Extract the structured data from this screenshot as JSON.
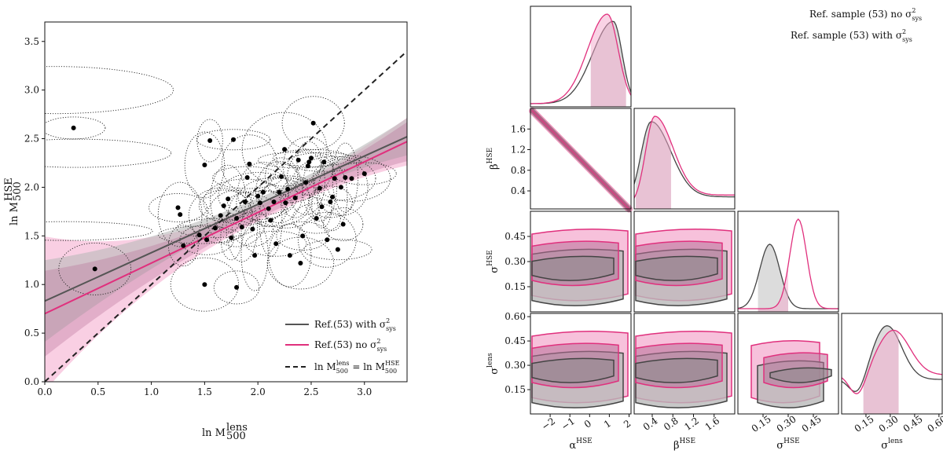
{
  "colors": {
    "pink": "#e0307d",
    "pink_band": "#f4a7cc",
    "grey": "#555555",
    "grey_band": "#b9b9b9",
    "dark": "#222222"
  },
  "chart_data": [
    {
      "type": "scatter",
      "xlabel_base": "ln M",
      "xlabel_sub": "500",
      "xlabel_sup": "lens",
      "ylabel_base": "ln M",
      "ylabel_sub": "500",
      "ylabel_sup": "HSE",
      "xlim": [
        0.0,
        3.4
      ],
      "ylim": [
        0.0,
        3.7
      ],
      "xticks": [
        "0.0",
        "0.5",
        "1.0",
        "1.5",
        "2.0",
        "2.5",
        "3.0"
      ],
      "yticks": [
        "0.0",
        "0.5",
        "1.0",
        "1.5",
        "2.0",
        "2.5",
        "3.0",
        "3.5"
      ],
      "points": [
        [
          0.27,
          2.61
        ],
        [
          0.47,
          1.16
        ],
        [
          1.25,
          1.79
        ],
        [
          1.27,
          1.72
        ],
        [
          1.3,
          1.4
        ],
        [
          1.45,
          1.51
        ],
        [
          1.5,
          1.0
        ],
        [
          1.52,
          1.46
        ],
        [
          1.5,
          2.23
        ],
        [
          1.55,
          2.48
        ],
        [
          1.6,
          1.58
        ],
        [
          1.65,
          1.71
        ],
        [
          1.68,
          1.81
        ],
        [
          1.72,
          1.88
        ],
        [
          1.75,
          1.48
        ],
        [
          1.77,
          2.49
        ],
        [
          1.8,
          1.68
        ],
        [
          1.8,
          0.97
        ],
        [
          1.85,
          1.59
        ],
        [
          1.88,
          1.85
        ],
        [
          1.9,
          2.1
        ],
        [
          1.92,
          2.24
        ],
        [
          1.95,
          1.57
        ],
        [
          1.97,
          1.3
        ],
        [
          2.0,
          1.91
        ],
        [
          2.02,
          1.84
        ],
        [
          2.05,
          1.95
        ],
        [
          2.1,
          1.78
        ],
        [
          2.12,
          1.66
        ],
        [
          2.15,
          1.85
        ],
        [
          2.17,
          1.42
        ],
        [
          2.2,
          1.95
        ],
        [
          2.22,
          2.11
        ],
        [
          2.25,
          2.39
        ],
        [
          2.26,
          1.84
        ],
        [
          2.28,
          1.98
        ],
        [
          2.3,
          1.3
        ],
        [
          2.35,
          1.89
        ],
        [
          2.38,
          2.28
        ],
        [
          2.4,
          1.22
        ],
        [
          2.42,
          1.5
        ],
        [
          2.45,
          2.05
        ],
        [
          2.48,
          2.26
        ],
        [
          2.5,
          2.3
        ],
        [
          2.52,
          2.66
        ],
        [
          2.55,
          1.68
        ],
        [
          2.58,
          1.99
        ],
        [
          2.6,
          1.8
        ],
        [
          2.62,
          2.26
        ],
        [
          2.65,
          1.46
        ],
        [
          2.68,
          1.85
        ],
        [
          2.7,
          1.9
        ],
        [
          2.72,
          2.09
        ],
        [
          2.75,
          1.36
        ],
        [
          2.78,
          2.0
        ],
        [
          2.8,
          1.62
        ],
        [
          2.82,
          2.1
        ],
        [
          2.88,
          2.09
        ],
        [
          3.0,
          2.14
        ],
        [
          2.47,
          2.22
        ]
      ],
      "lines": [
        {
          "name": "Ref.(53) with σ²sys",
          "color": "grey",
          "x": [
            0.0,
            3.4
          ],
          "y": [
            0.83,
            2.52
          ]
        },
        {
          "name": "Ref.(53) no σ²sys",
          "color": "pink",
          "x": [
            0.0,
            3.4
          ],
          "y": [
            0.7,
            2.47
          ]
        },
        {
          "name": "ln M500lens = ln M500HSE",
          "color": "dark",
          "dashed": true,
          "x": [
            0.0,
            3.4
          ],
          "y": [
            0.0,
            3.4
          ]
        }
      ],
      "legend": {
        "placement": "lower-right",
        "entries": [
          {
            "base": "Ref.(53) with σ",
            "sup": "2",
            "sub": "sys"
          },
          {
            "base": "Ref.(53) no σ",
            "sup": "2",
            "sub": "sys"
          },
          {
            "eq": "ln M",
            "sub1": "500",
            "sup1": "lens",
            "mid": " = ln M",
            "sub2": "500",
            "sup2": "HSE"
          }
        ]
      }
    },
    {
      "type": "corner",
      "legend": {
        "placement": "top-right",
        "entries": [
          {
            "text": "Ref. sample (53) no σ",
            "sup": "2",
            "sub": "sys",
            "color": "pink"
          },
          {
            "text": "Ref. sample (53) with σ",
            "sup": "2",
            "sub": "sys",
            "color": "grey"
          }
        ]
      },
      "parameters": [
        {
          "base": "α",
          "sup": "HSE",
          "ticks": [
            "−2",
            "−1",
            "0",
            "1",
            "2"
          ],
          "range": [
            -3,
            2.1
          ]
        },
        {
          "base": "β",
          "sup": "HSE",
          "ticks": [
            "0.4",
            "0.8",
            "1.2",
            "1.6"
          ],
          "range": [
            0.05,
            2.0
          ]
        },
        {
          "base": "σ",
          "sup": "HSE",
          "ticks": [
            "0.15",
            "0.30",
            "0.45"
          ],
          "range": [
            0.0,
            0.6
          ]
        },
        {
          "base": "σ",
          "sup": "lens",
          "ticks": [
            "0.15",
            "0.30",
            "0.45",
            "0.60"
          ],
          "range": [
            0.0,
            0.62
          ]
        }
      ],
      "y_panels": [
        {
          "row": 1,
          "label": {
            "base": "β",
            "sup": "HSE"
          },
          "ticks": [
            "0.4",
            "0.8",
            "1.2",
            "1.6"
          ],
          "range": [
            0.05,
            2.0
          ]
        },
        {
          "row": 2,
          "label": {
            "base": "σ",
            "sup": "HSE"
          },
          "ticks": [
            "0.15",
            "0.30",
            "0.45"
          ],
          "range": [
            0.0,
            0.6
          ]
        },
        {
          "row": 3,
          "label": {
            "base": "σ",
            "sup": "lens"
          },
          "ticks": [
            "0.15",
            "0.30",
            "0.45",
            "0.60"
          ],
          "range": [
            0.0,
            0.62
          ]
        }
      ]
    }
  ]
}
